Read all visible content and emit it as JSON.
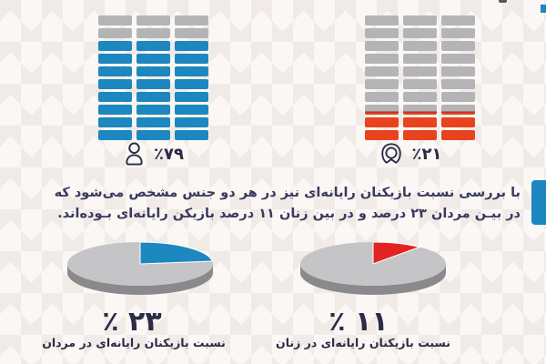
{
  "colors": {
    "blue": "#1d87bf",
    "red_block": "#e8431f",
    "pie_red": "#e32322",
    "gray_block": "#b4b4b6",
    "pie_gray_top": "#c5c5c7",
    "pie_gray_side": "#8a8a8c",
    "text_dark": "#2b2b47",
    "paragraph_text": "#3a3a5e",
    "background": "#faf7f5",
    "pattern": "#f1ebe8"
  },
  "icons": {
    "male": "male-person-icon",
    "female": "female-person-icon"
  },
  "paragraph": {
    "line1": "با بررسی نسبت بازیکنان رایانه‌ای نیز در هر دو جنس مشخص می‌شود که",
    "line2": "در بیـن مردان ۲۳ درصد و در بین زنان ۱۱ درصد بازیکن رایانه‌ای بـوده‌اند."
  },
  "chart_data": [
    {
      "type": "bar",
      "subtype": "waffle-grid",
      "name": "share-of-gamers-men",
      "categories": [
        "مردان"
      ],
      "values": [
        79
      ],
      "unit": "٪",
      "label": "٪۷۹",
      "grid": {
        "cols": 3,
        "rows": 10,
        "filled_from_bottom": 8,
        "partial_sliver": false
      },
      "fill_color": "#1d87bf",
      "empty_color": "#b4b4b6",
      "sliver_line_color": "#8f2c16"
    },
    {
      "type": "bar",
      "subtype": "waffle-grid",
      "name": "share-of-gamers-women",
      "categories": [
        "زنان"
      ],
      "values": [
        21
      ],
      "unit": "٪",
      "label": "٪۲۱",
      "grid": {
        "cols": 3,
        "rows": 10,
        "filled_from_bottom": 2,
        "partial_sliver": true
      },
      "fill_color": "#e8431f",
      "empty_color": "#b4b4b6",
      "sliver_line_color": "#8f2c16"
    },
    {
      "type": "pie",
      "name": "computer-gamer-ratio-men",
      "values": [
        23,
        77
      ],
      "colors": [
        "#1d87bf",
        "#c5c5c7"
      ],
      "side_color": "#8a8a8c",
      "value_label": "٪ ۲۳",
      "caption": "نسبت بازیکنان رایانه‌ای در مردان",
      "style": "3d-ellipse",
      "start_angle": "12-oclock",
      "direction": "clockwise"
    },
    {
      "type": "pie",
      "name": "computer-gamer-ratio-women",
      "values": [
        11,
        89
      ],
      "colors": [
        "#e32322",
        "#c5c5c7"
      ],
      "side_color": "#8a8a8c",
      "value_label": "٪ ۱۱",
      "caption": "نسبت بازیکنان رایانه‌ای در زنان",
      "style": "3d-ellipse",
      "start_angle": "12-oclock",
      "direction": "clockwise"
    }
  ]
}
